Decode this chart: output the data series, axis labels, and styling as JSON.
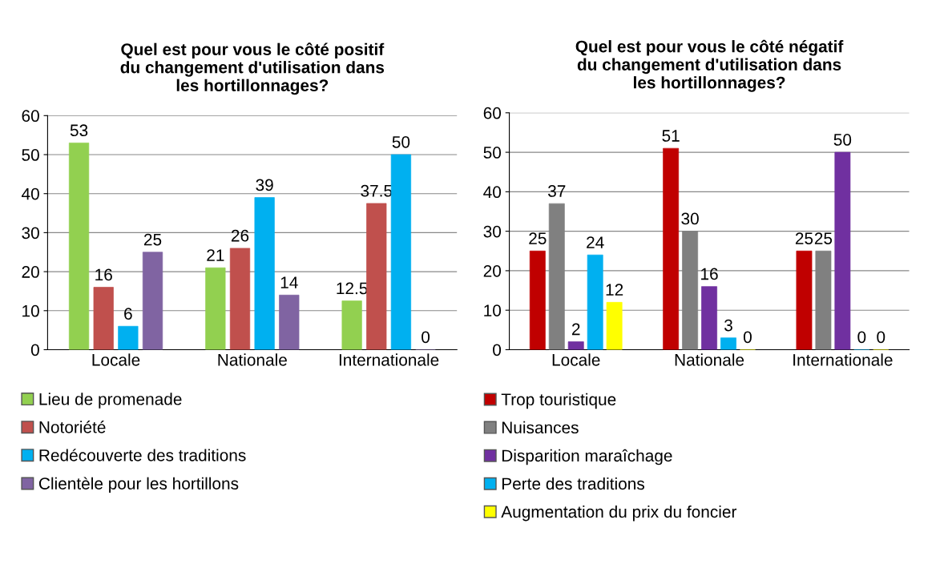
{
  "chart_data": [
    {
      "type": "bar",
      "title": "Quel est pour vous le côté positif\ndu changement d'utilisation dans\nles hortillonnages?",
      "categories": [
        "Locale",
        "Nationale",
        "Internationale"
      ],
      "ylim": [
        0,
        60
      ],
      "yticks": [
        0,
        10,
        20,
        30,
        40,
        50,
        60
      ],
      "grid": "y",
      "legend": "bottom",
      "data_labels": true,
      "series": [
        {
          "name": "Lieu de promenade",
          "color": "#92d050",
          "values": [
            53,
            21,
            12.5
          ]
        },
        {
          "name": "Notoriété",
          "color": "#c0504d",
          "values": [
            16,
            26,
            37.5
          ]
        },
        {
          "name": "Redécouverte des traditions",
          "color": "#00b0f0",
          "values": [
            6,
            39,
            50
          ]
        },
        {
          "name": "Clientèle pour les hortillons",
          "color": "#8064a2",
          "values": [
            25,
            14,
            0
          ]
        }
      ]
    },
    {
      "type": "bar",
      "title": "Quel est pour vous le côté négatif\ndu changement d'utilisation dans\nles hortillonnages?",
      "categories": [
        "Locale",
        "Nationale",
        "Internationale"
      ],
      "ylim": [
        0,
        60
      ],
      "yticks": [
        0,
        10,
        20,
        30,
        40,
        50,
        60
      ],
      "grid": "y",
      "legend": "bottom",
      "data_labels": true,
      "series": [
        {
          "name": "Trop touristique",
          "color": "#c00000",
          "values": [
            25,
            51,
            25
          ]
        },
        {
          "name": "Nuisances",
          "color": "#808080",
          "values": [
            37,
            30,
            25
          ]
        },
        {
          "name": "Disparition maraîchage",
          "color": "#7030a0",
          "values": [
            2,
            16,
            50
          ]
        },
        {
          "name": "Perte des traditions",
          "color": "#00b0f0",
          "values": [
            24,
            3,
            0
          ]
        },
        {
          "name": "Augmentation du prix du foncier",
          "color": "#ffff00",
          "values": [
            12,
            0,
            0
          ]
        }
      ]
    }
  ]
}
